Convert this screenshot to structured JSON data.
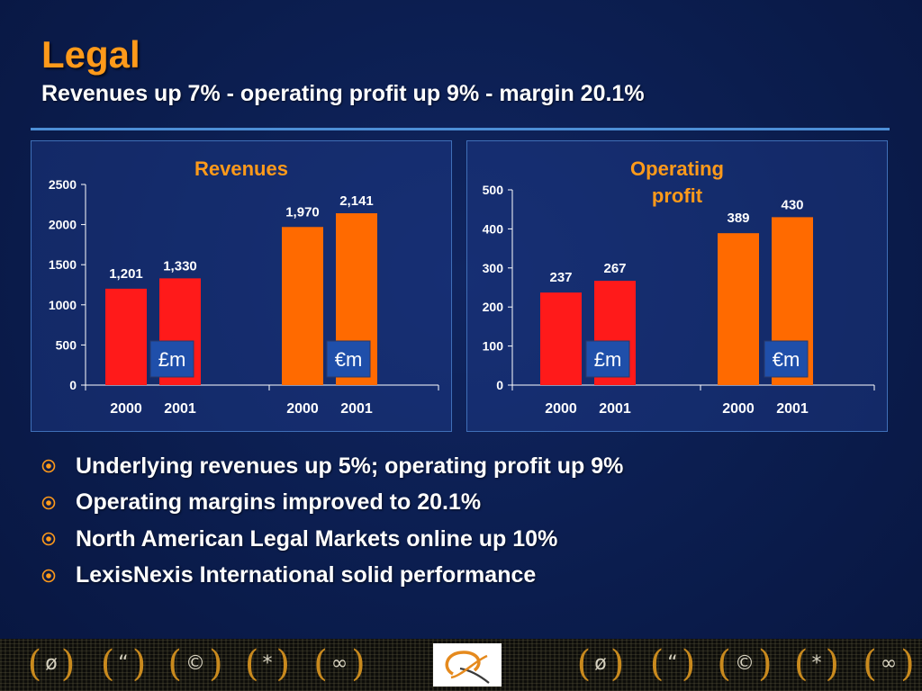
{
  "header": {
    "title": "Legal",
    "subtitle": "Revenues up 7% - operating profit up 9% - margin 20.1%"
  },
  "colors": {
    "title": "#ff9a1a",
    "gbp_bars": "#ff1a1a",
    "eur_bars": "#ff6a00",
    "panel_border": "#3f6fb8",
    "currency_box": "#1f4faa"
  },
  "chart_data": [
    {
      "type": "bar",
      "title": "Revenues",
      "groups": [
        {
          "unit_label": "£m",
          "categories": [
            "2000",
            "2001"
          ],
          "values": [
            1201,
            1330
          ],
          "value_labels": [
            "1,201",
            "1,330"
          ]
        },
        {
          "unit_label": "€m",
          "categories": [
            "2000",
            "2001"
          ],
          "values": [
            1970,
            2141
          ],
          "value_labels": [
            "1,970",
            "2,141"
          ]
        }
      ],
      "ylim": [
        0,
        2500
      ],
      "yticks": [
        0,
        500,
        1000,
        1500,
        2000,
        2500
      ],
      "grid": false
    },
    {
      "type": "bar",
      "title": "Operating profit",
      "title_lines": [
        "Operating",
        "profit"
      ],
      "groups": [
        {
          "unit_label": "£m",
          "categories": [
            "2000",
            "2001"
          ],
          "values": [
            237,
            267
          ],
          "value_labels": [
            "237",
            "267"
          ]
        },
        {
          "unit_label": "€m",
          "categories": [
            "2000",
            "2001"
          ],
          "values": [
            389,
            430
          ],
          "value_labels": [
            "389",
            "430"
          ]
        }
      ],
      "ylim": [
        0,
        500
      ],
      "yticks": [
        0,
        100,
        200,
        300,
        400,
        500
      ],
      "grid": false
    }
  ],
  "bullets": [
    "Underlying revenues up 5%;  operating profit up 9%",
    "Operating margins improved to 20.1%",
    "North American Legal Markets online up 10%",
    "LexisNexis International solid performance"
  ],
  "bullet_icon": "circle-dot-icon",
  "footer": {
    "symbols": [
      {
        "icon": "null-sign-icon",
        "glyph": "ø"
      },
      {
        "icon": "quote-mark-icon",
        "glyph": "“"
      },
      {
        "icon": "copyright-icon",
        "glyph": "©"
      },
      {
        "icon": "asterisk-icon",
        "glyph": "*"
      },
      {
        "icon": "infinity-icon",
        "glyph": "∞"
      }
    ],
    "logo_icon": "company-logo-icon"
  }
}
